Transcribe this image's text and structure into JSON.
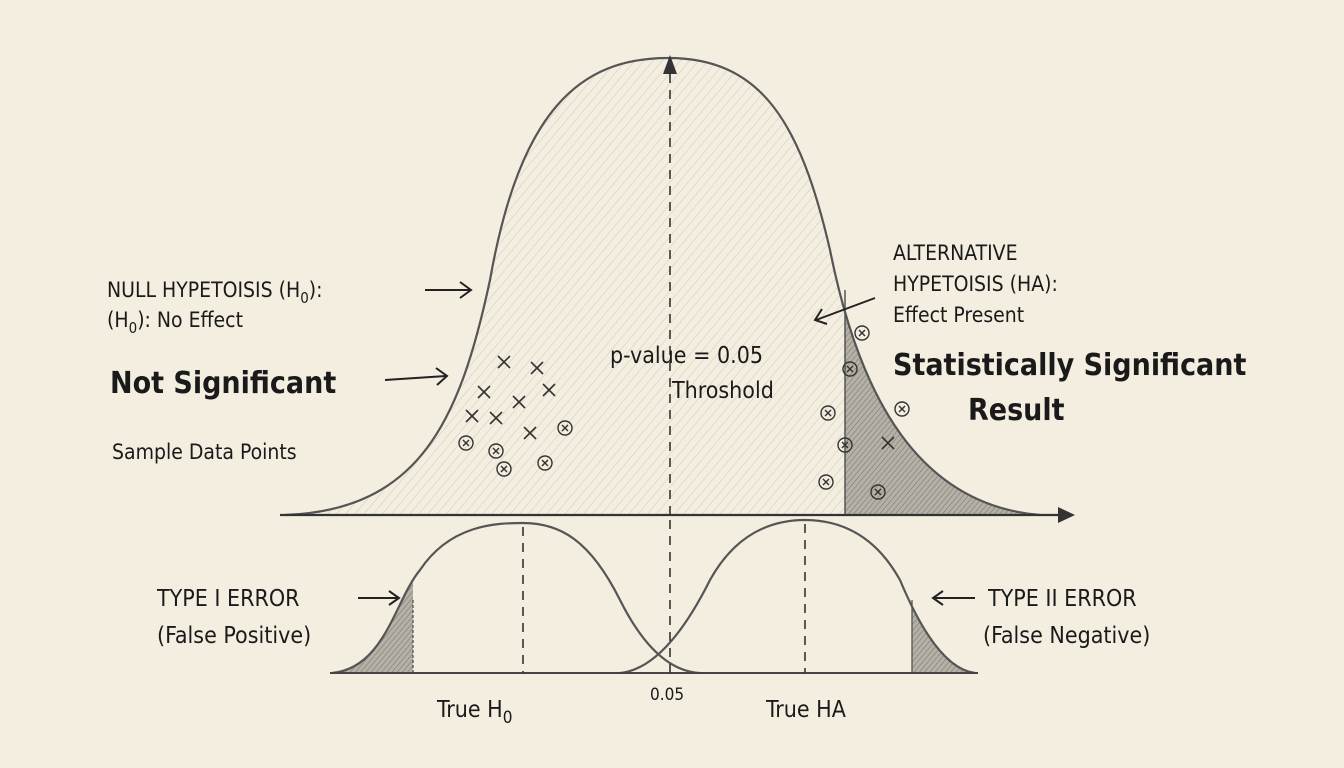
{
  "colors": {
    "background": "#f3eee0",
    "ink": "#1a1a1a",
    "curve": "#555555",
    "shade": "#8a8780"
  },
  "null_hypothesis": {
    "line1_a": "NULL HYPETOISIS (H",
    "line1_sub": "0",
    "line1_b": "):",
    "line2_a": "(H",
    "line2_sub": "0",
    "line2_b": "): No Effect"
  },
  "not_significant": "Not Significant",
  "sample_data_points": "Sample Data Points",
  "threshold": {
    "line1": "p-value = 0.05",
    "line2": "Throshold"
  },
  "alternative_hypothesis": {
    "line1": "ALTERNATIVE",
    "line2": "HYPETOISIS (HA):",
    "line3": "Effect Present"
  },
  "significant": {
    "line1": "Statistically Significant",
    "line2": "Result"
  },
  "type1": {
    "line1": "TYPE I ERROR",
    "line2": "(False Positive)"
  },
  "type2": {
    "line1": "TYPE II ERROR",
    "line2": "(False Negative)"
  },
  "bottom_axis": {
    "true_h0_a": "True H",
    "true_h0_sub": "0",
    "tick": "0.05",
    "true_ha": "True HA"
  }
}
